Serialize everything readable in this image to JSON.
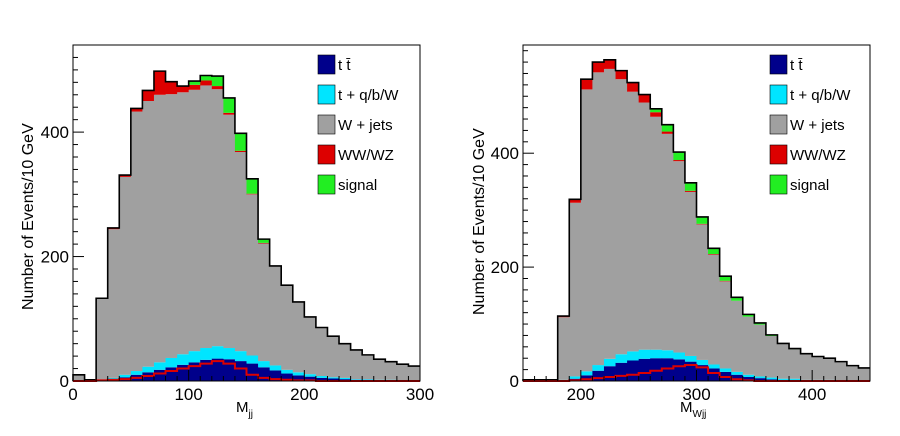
{
  "colors": {
    "ttbar": "#00008b",
    "single_top": "#00e5ff",
    "wjets": "#a0a0a0",
    "diboson": "#dd0000",
    "signal": "#22ee22"
  },
  "chart_data": [
    {
      "type": "stacked-histogram",
      "xlabel_main": "M",
      "xlabel_sub": "jj",
      "ylabel": "Number of Events/10 GeV",
      "xlim": [
        0,
        300
      ],
      "ylim": [
        0,
        540
      ],
      "xticks": [
        0,
        100,
        200,
        300
      ],
      "yticks": [
        0,
        200,
        400
      ],
      "bin_edges": [
        0,
        10,
        20,
        30,
        40,
        50,
        60,
        70,
        80,
        90,
        100,
        110,
        120,
        130,
        140,
        150,
        160,
        170,
        180,
        190,
        200,
        210,
        220,
        230,
        240,
        250,
        260,
        270,
        280,
        290,
        300
      ],
      "series": [
        {
          "name": "t t̄",
          "key": "ttbar",
          "values": [
            0,
            0,
            1,
            3,
            6,
            10,
            14,
            18,
            22,
            26,
            30,
            34,
            36,
            35,
            32,
            28,
            22,
            17,
            12,
            9,
            7,
            5,
            4,
            3,
            2,
            2,
            1,
            1,
            1,
            0
          ]
        },
        {
          "name": "t + q/b/W",
          "key": "single_top",
          "values": [
            0,
            0,
            1,
            2,
            4,
            6,
            9,
            12,
            15,
            17,
            18,
            19,
            20,
            18,
            16,
            13,
            10,
            8,
            6,
            5,
            4,
            3,
            2,
            2,
            1,
            1,
            1,
            1,
            0,
            0
          ]
        },
        {
          "name": "W + jets",
          "key": "wjets",
          "values": [
            10,
            2,
            130,
            239,
            318,
            417,
            427,
            430,
            424,
            421,
            420,
            422,
            413,
            375,
            320,
            259,
            189,
            159,
            135,
            113,
            92,
            78,
            66,
            55,
            47,
            39,
            33,
            29,
            26,
            24
          ]
        },
        {
          "name": "WW/WZ",
          "key": "diboson",
          "values": [
            0,
            0,
            1,
            2,
            3,
            5,
            17,
            38,
            20,
            10,
            8,
            8,
            5,
            3,
            2,
            1,
            1,
            1,
            1,
            0,
            0,
            0,
            0,
            0,
            0,
            0,
            0,
            0,
            0,
            0
          ]
        },
        {
          "name": "signal",
          "key": "signal",
          "values": [
            0,
            0,
            0,
            0,
            0,
            0,
            0,
            0,
            0,
            0,
            6,
            8,
            16,
            24,
            28,
            24,
            6,
            0,
            0,
            0,
            0,
            0,
            0,
            0,
            0,
            0,
            0,
            0,
            0,
            0
          ]
        }
      ],
      "signal_outline": [
        0,
        0,
        1,
        2,
        3,
        5,
        8,
        12,
        16,
        20,
        24,
        28,
        32,
        28,
        20,
        10,
        5,
        3,
        2,
        1,
        1,
        0,
        0,
        0,
        0,
        0,
        0,
        0,
        0,
        0
      ]
    },
    {
      "type": "stacked-histogram",
      "xlabel_main": "M",
      "xlabel_sub": "Wjj",
      "ylabel": "Number of Events/10 GeV",
      "xlim": [
        150,
        450
      ],
      "ylim": [
        0,
        590
      ],
      "xticks": [
        200,
        300,
        400
      ],
      "yticks": [
        0,
        200,
        400
      ],
      "bin_edges": [
        150,
        160,
        170,
        180,
        190,
        200,
        210,
        220,
        230,
        240,
        250,
        260,
        270,
        280,
        290,
        300,
        310,
        320,
        330,
        340,
        350,
        360,
        370,
        380,
        390,
        400,
        410,
        420,
        430,
        440,
        450
      ],
      "series": [
        {
          "name": "t t̄",
          "key": "ttbar",
          "values": [
            0,
            0,
            0,
            1,
            4,
            10,
            18,
            26,
            32,
            36,
            39,
            40,
            40,
            38,
            34,
            28,
            22,
            16,
            11,
            7,
            5,
            3,
            2,
            2,
            1,
            1,
            1,
            0,
            0,
            0
          ]
        },
        {
          "name": "t + q/b/W",
          "key": "single_top",
          "values": [
            0,
            0,
            0,
            1,
            4,
            7,
            10,
            13,
            15,
            16,
            16,
            15,
            14,
            12,
            10,
            9,
            7,
            6,
            5,
            4,
            3,
            3,
            2,
            2,
            1,
            1,
            1,
            1,
            0,
            0
          ]
        },
        {
          "name": "W + jets",
          "key": "wjets",
          "values": [
            2,
            2,
            2,
            110,
            305,
            495,
            514,
            509,
            483,
            456,
            434,
            409,
            380,
            336,
            288,
            238,
            193,
            153,
            125,
            102,
            91,
            73,
            61,
            52,
            45,
            41,
            38,
            33,
            27,
            23
          ]
        },
        {
          "name": "WW/WZ",
          "key": "diboson",
          "values": [
            0,
            0,
            0,
            2,
            6,
            18,
            18,
            16,
            15,
            16,
            14,
            8,
            4,
            2,
            2,
            1,
            1,
            1,
            0,
            0,
            0,
            0,
            0,
            0,
            0,
            0,
            0,
            0,
            0,
            0
          ]
        },
        {
          "name": "signal",
          "key": "signal",
          "values": [
            0,
            0,
            0,
            0,
            0,
            0,
            0,
            0,
            0,
            0,
            0,
            6,
            12,
            14,
            14,
            12,
            10,
            8,
            6,
            4,
            3,
            2,
            1,
            1,
            1,
            0,
            0,
            0,
            0,
            0
          ]
        }
      ],
      "signal_outline": [
        0,
        0,
        0,
        0,
        1,
        3,
        5,
        7,
        9,
        11,
        14,
        18,
        22,
        26,
        28,
        24,
        14,
        7,
        3,
        1,
        0,
        0,
        0,
        0,
        0,
        0,
        0,
        0,
        0,
        0
      ]
    }
  ]
}
